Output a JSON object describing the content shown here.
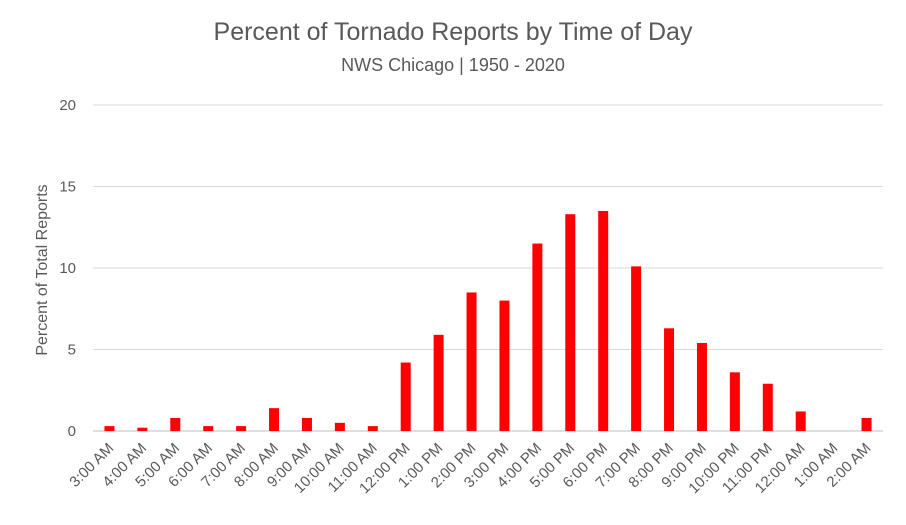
{
  "chart_data": {
    "type": "bar",
    "title": "Percent of Tornado Reports by Time of Day",
    "subtitle": "NWS Chicago | 1950 - 2020",
    "xlabel": "",
    "ylabel": "Percent of Total Reports",
    "ylim": [
      0,
      20
    ],
    "yticks": [
      0,
      5,
      10,
      15,
      20
    ],
    "grid": true,
    "bar_color": "#ff0000",
    "categories": [
      "3:00 AM",
      "4:00 AM",
      "5:00 AM",
      "6:00 AM",
      "7:00 AM",
      "8:00 AM",
      "9:00 AM",
      "10:00 AM",
      "11:00 AM",
      "12:00 PM",
      "1:00 PM",
      "2:00 PM",
      "3:00 PM",
      "4:00 PM",
      "5:00 PM",
      "6:00 PM",
      "7:00 PM",
      "8:00 PM",
      "9:00 PM",
      "10:00 PM",
      "11:00 PM",
      "12:00 AM",
      "1:00 AM",
      "2:00 AM"
    ],
    "values": [
      0.3,
      0.2,
      0.8,
      0.3,
      0.3,
      1.4,
      0.8,
      0.5,
      0.3,
      4.2,
      5.9,
      8.5,
      8.0,
      11.5,
      13.3,
      13.5,
      10.1,
      6.3,
      5.4,
      3.6,
      2.9,
      1.2,
      0.0,
      0.8
    ]
  }
}
